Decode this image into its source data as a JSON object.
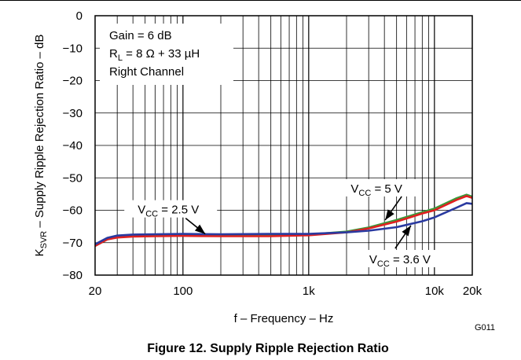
{
  "chart_data": {
    "type": "line",
    "xscale": "log",
    "xlim": [
      20,
      20000
    ],
    "ylim": [
      -80,
      0
    ],
    "grid": true,
    "xlabel": "f – Frequency – Hz",
    "ylabel": "KSVR – Supply Ripple Rejection Ratio – dB",
    "x_tick_labels": [
      "20",
      "100",
      "1k",
      "10k",
      "20k"
    ],
    "x_tick_values": [
      20,
      100,
      1000,
      10000,
      20000
    ],
    "y_tick_labels": [
      "0",
      "−10",
      "−20",
      "−30",
      "−40",
      "−50",
      "−60",
      "−70",
      "−80"
    ],
    "y_tick_values": [
      0,
      -10,
      -20,
      -30,
      -40,
      -50,
      -60,
      -70,
      -80
    ],
    "conditions": [
      "Gain = 6 dB",
      "RL = 8 Ω + 33 µH",
      "Right Channel"
    ],
    "figure_code": "G011",
    "caption": "Figure 12. Supply Ripple Rejection Ratio",
    "series": [
      {
        "name": "VCC = 5 V",
        "color": "#3a9a3a",
        "x": [
          20,
          25,
          30,
          40,
          60,
          100,
          200,
          500,
          1000,
          2000,
          3000,
          5000,
          8000,
          10000,
          15000,
          18000,
          20000
        ],
        "y": [
          -71,
          -69,
          -68.2,
          -67.8,
          -67.8,
          -67.6,
          -67.6,
          -67.6,
          -67.5,
          -66.6,
          -65.3,
          -63,
          -60.6,
          -59.5,
          -56.3,
          -55.2,
          -55.8
        ]
      },
      {
        "name": "VCC = 2.5 V",
        "color": "#e02020",
        "x": [
          20,
          25,
          30,
          40,
          60,
          100,
          200,
          500,
          1000,
          2000,
          3000,
          5000,
          8000,
          10000,
          15000,
          18000,
          20000
        ],
        "y": [
          -71,
          -69,
          -68.4,
          -68.1,
          -68,
          -67.9,
          -68,
          -68,
          -67.7,
          -66.8,
          -65.6,
          -63.5,
          -61,
          -60,
          -56.8,
          -55.6,
          -56.2
        ]
      },
      {
        "name": "VCC = 3.6 V",
        "color": "#2a3aa0",
        "x": [
          20,
          25,
          30,
          40,
          60,
          100,
          200,
          500,
          1000,
          2000,
          3000,
          5000,
          8000,
          10000,
          15000,
          18000,
          20000
        ],
        "y": [
          -70.5,
          -68.5,
          -67.8,
          -67.5,
          -67.4,
          -67.3,
          -67.4,
          -67.3,
          -67.3,
          -66.8,
          -66.3,
          -65.2,
          -63.4,
          -62.2,
          -59.2,
          -57.8,
          -58
        ]
      }
    ],
    "annotations": [
      {
        "label": "VCC = 5 V",
        "target_x": 4000,
        "target_y": -63.5,
        "placement": "above-right"
      },
      {
        "label": "VCC = 2.5 V",
        "target_x": 140,
        "target_y": -67.8,
        "placement": "above-left"
      },
      {
        "label": "VCC = 3.6 V",
        "target_x": 6500,
        "target_y": -64,
        "placement": "below-right"
      }
    ]
  }
}
